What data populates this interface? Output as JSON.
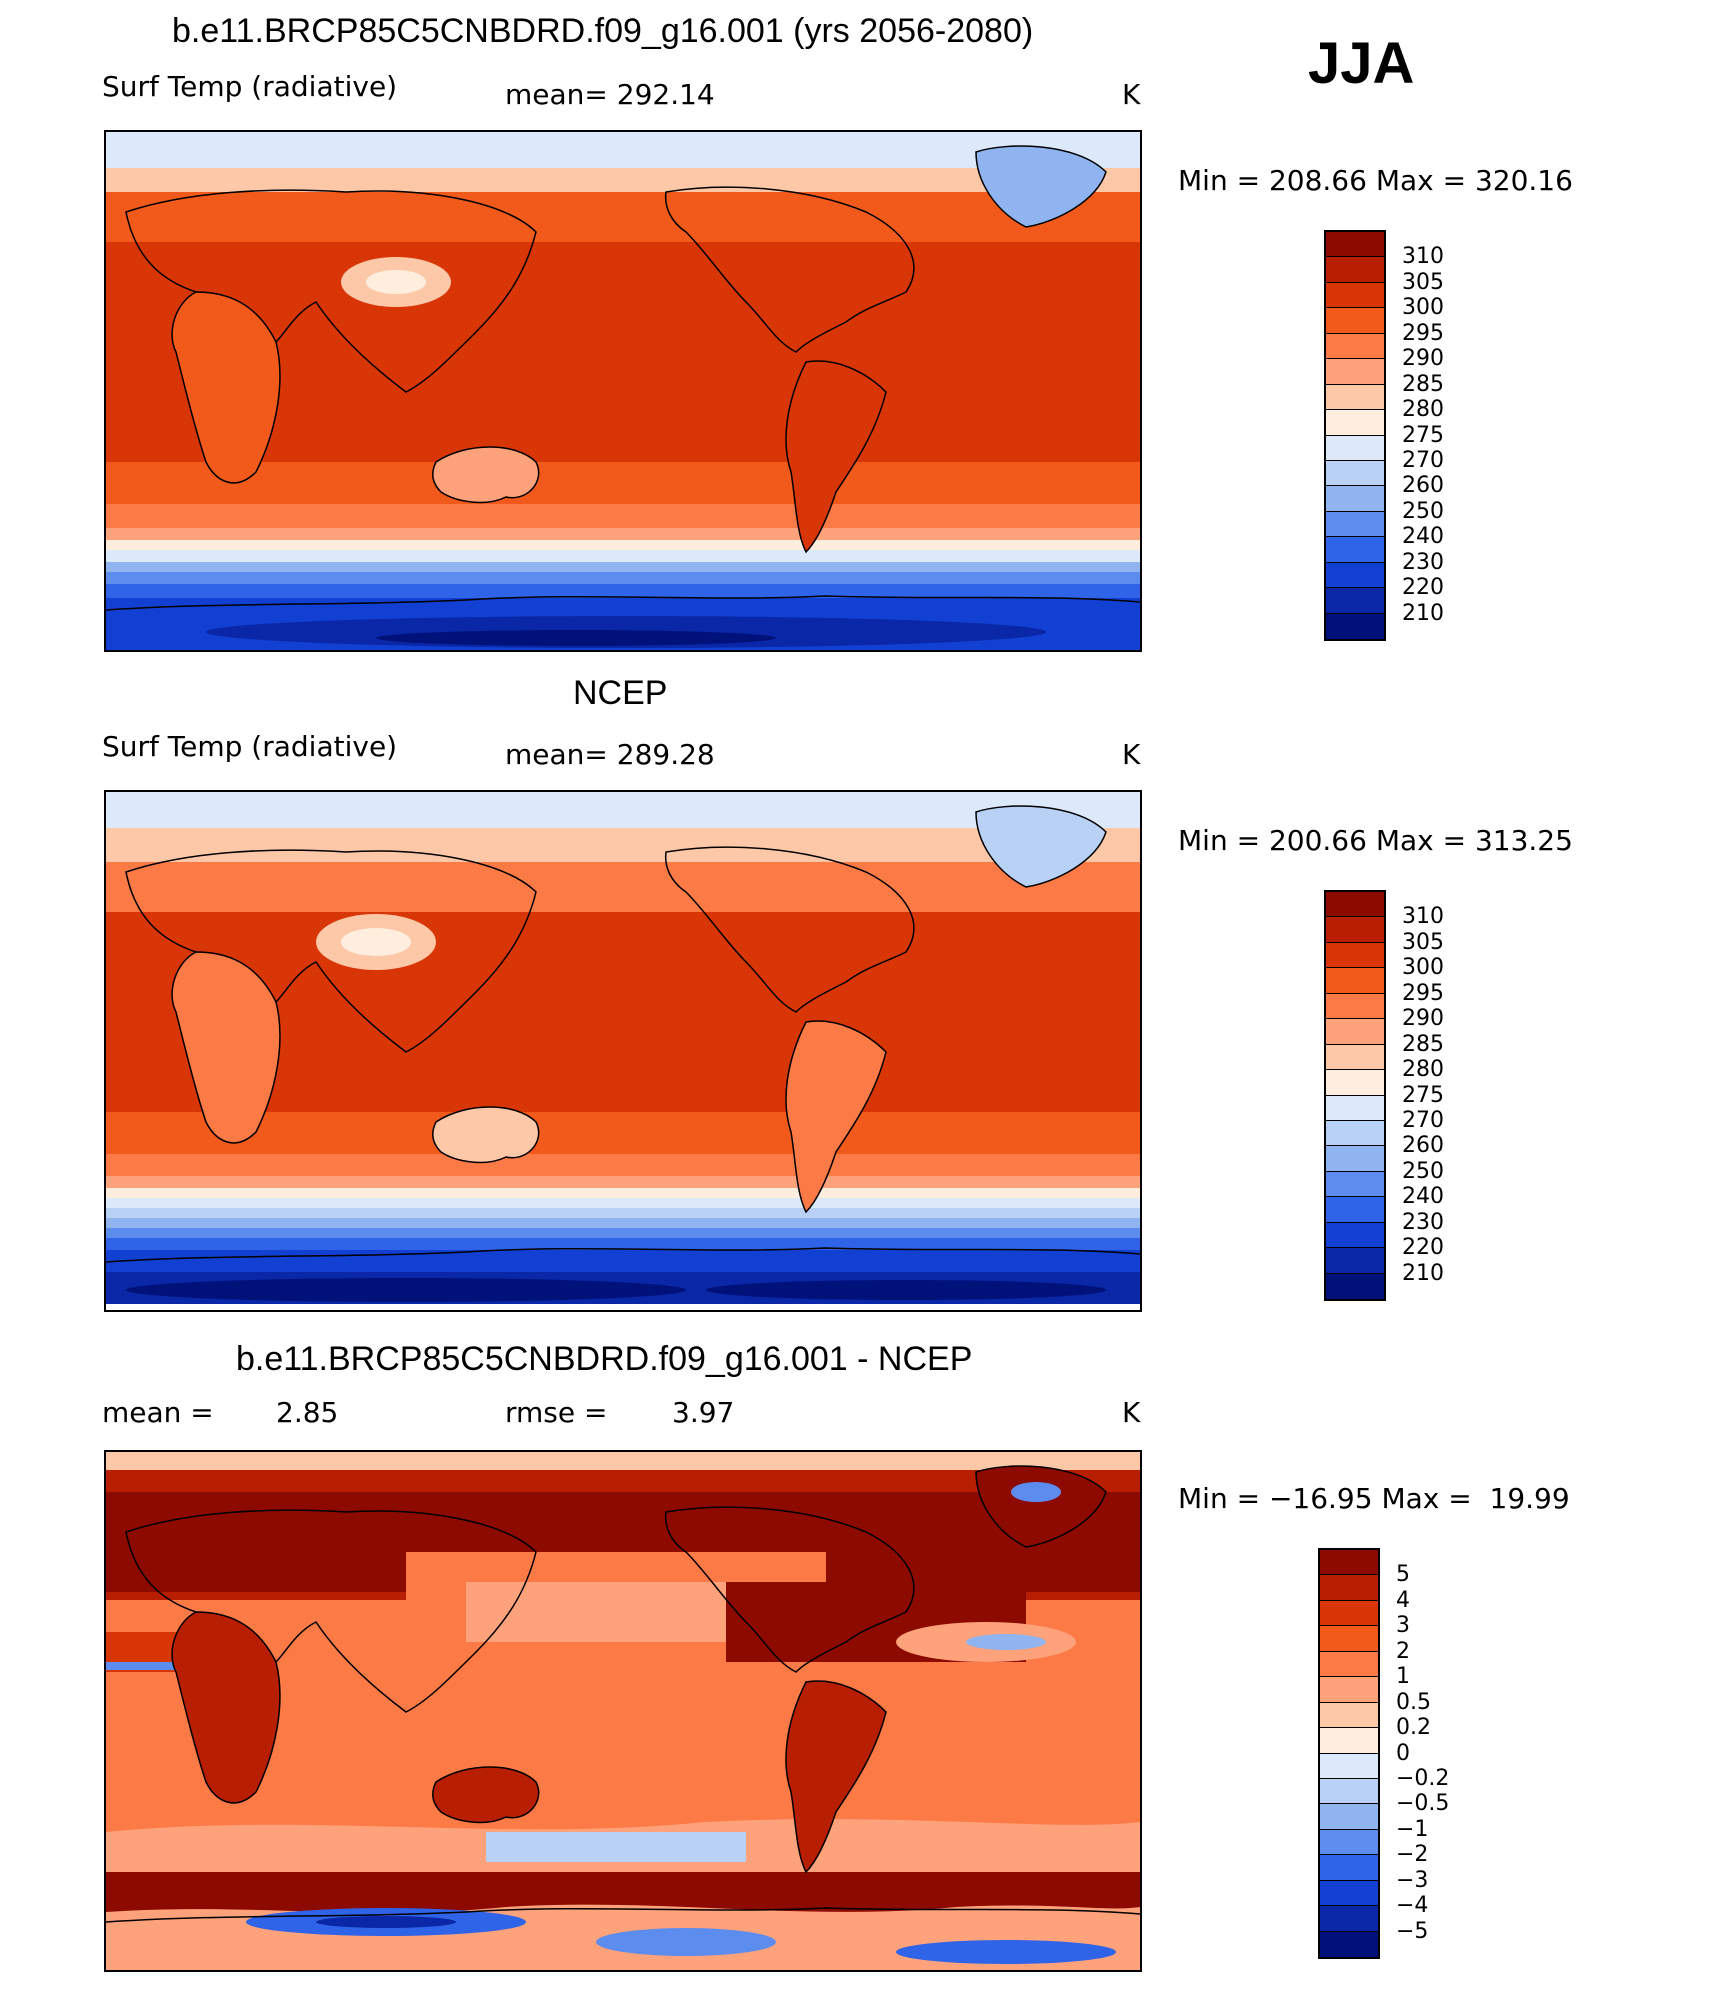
{
  "season": "JJA",
  "panels": [
    {
      "title": "b.e11.BRCP85C5CNBDRD.f09_g16.001 (yrs 2056-2080)",
      "left_label": "Surf Temp (radiative)",
      "center_label": "mean= 292.14",
      "units": "K",
      "minmax": "Min = 208.66 Max = 320.16"
    },
    {
      "title": "NCEP",
      "left_label": "Surf Temp (radiative)",
      "center_label": "mean= 289.28",
      "units": "K",
      "minmax": "Min = 200.66 Max = 313.25"
    },
    {
      "title": "b.e11.BRCP85C5CNBDRD.f09_g16.001 - NCEP",
      "left_label": "mean =",
      "left_value": "2.85",
      "center_label": "rmse =",
      "center_value": "3.97",
      "units": "K",
      "minmax": "Min = −16.95 Max =  19.99"
    }
  ],
  "chart_data": [
    {
      "type": "heatmap",
      "title": "b.e11.BRCP85C5CNBDRD.f09_g16.001 (yrs 2056-2080)",
      "variable": "Surf Temp (radiative)",
      "units": "K",
      "mean": 292.14,
      "min": 208.66,
      "max": 320.16,
      "colorbar_levels": [
        "310",
        "305",
        "300",
        "295",
        "290",
        "285",
        "280",
        "275",
        "270",
        "260",
        "250",
        "240",
        "230",
        "220",
        "210"
      ],
      "colorbar_colors": [
        "#8c0a00",
        "#b81e02",
        "#d93607",
        "#f25a1c",
        "#fb7a45",
        "#fda27b",
        "#fdc8a8",
        "#ffeedd",
        "#dbe9fb",
        "#b8d1f5",
        "#8fb4f0",
        "#5c8ced",
        "#2f63e8",
        "#1140d2",
        "#0a27a8",
        "#00127a"
      ]
    },
    {
      "type": "heatmap",
      "title": "NCEP",
      "variable": "Surf Temp (radiative)",
      "units": "K",
      "mean": 289.28,
      "min": 200.66,
      "max": 313.25,
      "colorbar_levels": [
        "310",
        "305",
        "300",
        "295",
        "290",
        "285",
        "280",
        "275",
        "270",
        "260",
        "250",
        "240",
        "230",
        "220",
        "210"
      ],
      "colorbar_colors": [
        "#8c0a00",
        "#b81e02",
        "#d93607",
        "#f25a1c",
        "#fb7a45",
        "#fda27b",
        "#fdc8a8",
        "#ffeedd",
        "#dbe9fb",
        "#b8d1f5",
        "#8fb4f0",
        "#5c8ced",
        "#2f63e8",
        "#1140d2",
        "#0a27a8",
        "#00127a"
      ]
    },
    {
      "type": "heatmap",
      "title": "b.e11.BRCP85C5CNBDRD.f09_g16.001 - NCEP",
      "units": "K",
      "mean": 2.85,
      "rmse": 3.97,
      "min": -16.95,
      "max": 19.99,
      "colorbar_levels": [
        "5",
        "4",
        "3",
        "2",
        "1",
        "0.5",
        "0.2",
        "0",
        "−0.2",
        "−0.5",
        "−1",
        "−2",
        "−3",
        "−4",
        "−5"
      ],
      "colorbar_colors": [
        "#8c0a00",
        "#b81e02",
        "#d93607",
        "#f25a1c",
        "#fb7a45",
        "#fda27b",
        "#fdc8a8",
        "#ffeedd",
        "#dbe9fb",
        "#b8d1f5",
        "#8fb4f0",
        "#5c8ced",
        "#2f63e8",
        "#1140d2",
        "#0a27a8",
        "#00127a"
      ]
    }
  ]
}
